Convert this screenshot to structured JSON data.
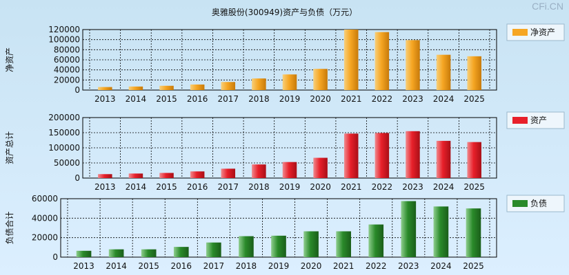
{
  "title": "奥雅股份(300949)资产与负债（万元）",
  "watermark": "CFi.CN",
  "colors": {
    "net_assets": "#f6a623",
    "assets": "#e8202a",
    "liabilities": "#2a8a2a"
  },
  "chart_data": [
    {
      "type": "bar",
      "ylabel": "净资产",
      "legend": "净资产",
      "legend_position": "top-right",
      "categories": [
        "2013",
        "2014",
        "2015",
        "2016",
        "2017",
        "2018",
        "2019",
        "2020",
        "2021",
        "2022",
        "2023",
        "2024",
        "2025"
      ],
      "values": [
        6000,
        7000,
        8500,
        11000,
        16000,
        23000,
        31000,
        42000,
        120000,
        115000,
        99000,
        70000,
        67000
      ],
      "ylim": [
        0,
        120000
      ],
      "yticks": [
        0,
        20000,
        40000,
        60000,
        80000,
        100000,
        120000
      ],
      "grid": true
    },
    {
      "type": "bar",
      "ylabel": "资产总计",
      "legend": "资产",
      "legend_position": "top-right",
      "categories": [
        "2013",
        "2014",
        "2015",
        "2016",
        "2017",
        "2018",
        "2019",
        "2020",
        "2021",
        "2022",
        "2023",
        "2024",
        "2025"
      ],
      "values": [
        13000,
        15000,
        17000,
        22000,
        31000,
        45000,
        53000,
        67000,
        147000,
        149000,
        155000,
        123000,
        119000
      ],
      "ylim": [
        0,
        200000
      ],
      "yticks": [
        0,
        50000,
        100000,
        150000,
        200000
      ],
      "grid": true
    },
    {
      "type": "bar",
      "ylabel": "负债合计",
      "legend": "负债",
      "legend_position": "top-right",
      "categories": [
        "2013",
        "2014",
        "2015",
        "2016",
        "2017",
        "2018",
        "2019",
        "2020",
        "2021",
        "2022",
        "2023",
        "2024",
        "2025"
      ],
      "values": [
        6500,
        8000,
        8000,
        10500,
        15000,
        21500,
        22000,
        26500,
        26500,
        33500,
        57500,
        52000,
        50000
      ],
      "ylim": [
        0,
        60000
      ],
      "yticks": [
        0,
        20000,
        40000,
        60000
      ],
      "grid": true
    }
  ]
}
